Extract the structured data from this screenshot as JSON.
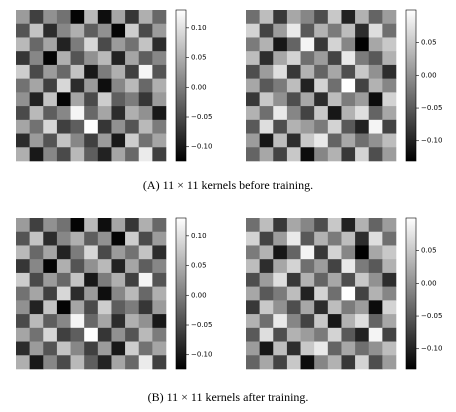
{
  "chart_data": [
    {
      "type": "heatmap",
      "colormap": "gray",
      "zlim": [
        -0.124,
        0.13
      ],
      "zticks": [
        {
          "value": 0.1,
          "label": "0.10"
        },
        0.05,
        {
          "value": 0,
          "label": "0.00"
        },
        {
          "value": -0.05,
          "label": "−0.05"
        },
        {
          "value": -0.1,
          "label": "−0.10"
        }
      ],
      "z": [
        [
          0.03,
          -0.06,
          0.02,
          -0.01,
          -0.12,
          0.06,
          -0.11,
          0.04,
          -0.07,
          0.05,
          -0.02
        ],
        [
          -0.04,
          0.07,
          -0.08,
          0.01,
          0.05,
          -0.03,
          0.02,
          -0.12,
          0.08,
          -0.05,
          0.03
        ],
        [
          0.06,
          -0.02,
          0.04,
          -0.09,
          0.0,
          0.09,
          -0.05,
          0.03,
          -0.01,
          0.07,
          -0.08
        ],
        [
          -0.07,
          0.01,
          -0.12,
          0.05,
          -0.04,
          0.02,
          0.06,
          -0.09,
          0.04,
          -0.03,
          0.01
        ],
        [
          0.08,
          -0.05,
          0.03,
          -0.02,
          0.07,
          -0.1,
          0.0,
          0.05,
          -0.06,
          0.12,
          -0.04
        ],
        [
          -0.01,
          0.04,
          -0.06,
          0.09,
          -0.08,
          0.03,
          -0.11,
          0.01,
          0.06,
          -0.02,
          0.05
        ],
        [
          0.02,
          -0.09,
          0.07,
          -0.12,
          0.04,
          -0.05,
          0.08,
          -0.03,
          0.0,
          -0.07,
          0.03
        ],
        [
          -0.05,
          0.06,
          -0.03,
          0.01,
          0.12,
          -0.02,
          0.04,
          -0.08,
          0.05,
          0.02,
          -0.1
        ],
        [
          0.04,
          -0.01,
          0.09,
          -0.06,
          -0.03,
          0.13,
          -0.07,
          0.02,
          -0.04,
          0.06,
          0.0
        ],
        [
          -0.08,
          0.03,
          -0.04,
          0.07,
          0.01,
          -0.06,
          0.03,
          -0.1,
          0.08,
          -0.01,
          0.04
        ],
        [
          0.05,
          -0.1,
          0.01,
          -0.05,
          0.06,
          -0.03,
          -0.09,
          0.04,
          -0.02,
          0.11,
          -0.06
        ]
      ]
    },
    {
      "type": "heatmap",
      "colormap": "gray",
      "zlim": [
        -0.131,
        0.1
      ],
      "zticks": [
        0.05,
        {
          "value": 0,
          "label": "0.00"
        },
        {
          "value": -0.05,
          "label": "−0.05"
        },
        {
          "value": -0.1,
          "label": "−0.10"
        }
      ],
      "z": [
        [
          -0.03,
          0.04,
          -0.08,
          0.02,
          -0.01,
          -0.06,
          0.05,
          -0.1,
          0.03,
          -0.04,
          0.01
        ],
        [
          0.06,
          -0.07,
          0.01,
          0.08,
          -0.05,
          0.03,
          -0.02,
          0.04,
          -0.09,
          0.07,
          -0.03
        ],
        [
          -0.02,
          0.03,
          -0.11,
          -0.04,
          0.09,
          -0.08,
          0.06,
          -0.01,
          -0.13,
          0.02,
          0.05
        ],
        [
          0.04,
          -0.09,
          0.02,
          0.06,
          -0.03,
          0.01,
          -0.07,
          0.08,
          -0.02,
          -0.05,
          0.03
        ],
        [
          -0.06,
          0.01,
          0.07,
          -0.08,
          0.03,
          -0.04,
          0.02,
          -0.06,
          0.05,
          0.0,
          -0.09
        ],
        [
          0.02,
          -0.05,
          -0.02,
          0.04,
          -0.1,
          0.06,
          -0.03,
          0.1,
          -0.07,
          0.03,
          -0.01
        ],
        [
          -0.08,
          0.05,
          0.0,
          -0.06,
          0.02,
          -0.09,
          0.04,
          -0.02,
          0.01,
          -0.12,
          0.06
        ],
        [
          0.03,
          -0.03,
          0.08,
          -0.01,
          -0.07,
          0.05,
          -0.11,
          0.03,
          0.07,
          -0.04,
          0.02
        ],
        [
          -0.05,
          0.07,
          -0.06,
          0.03,
          0.01,
          -0.02,
          0.06,
          -0.05,
          -0.1,
          0.09,
          -0.07
        ],
        [
          0.01,
          -0.11,
          0.04,
          -0.09,
          0.05,
          0.08,
          -0.04,
          0.02,
          -0.03,
          0.0,
          0.04
        ],
        [
          -0.04,
          0.02,
          -0.07,
          0.05,
          -0.12,
          -0.01,
          0.03,
          -0.08,
          0.06,
          -0.06,
          0.01
        ]
      ]
    },
    {
      "type": "heatmap",
      "colormap": "gray",
      "zlim": [
        -0.124,
        0.13
      ],
      "zticks": [
        {
          "value": 0.1,
          "label": "0.10"
        },
        0.05,
        {
          "value": 0,
          "label": "0.00"
        },
        {
          "value": -0.05,
          "label": "−0.05"
        },
        {
          "value": -0.1,
          "label": "−0.10"
        }
      ],
      "z": [
        [
          0.03,
          -0.06,
          0.02,
          -0.01,
          -0.12,
          0.06,
          -0.11,
          0.04,
          -0.07,
          0.05,
          -0.02
        ],
        [
          -0.04,
          0.07,
          -0.08,
          0.01,
          0.05,
          -0.03,
          0.02,
          -0.12,
          0.08,
          -0.05,
          0.03
        ],
        [
          0.06,
          -0.02,
          0.04,
          -0.09,
          0.0,
          0.09,
          -0.05,
          0.03,
          -0.01,
          0.07,
          -0.08
        ],
        [
          -0.07,
          0.01,
          -0.12,
          0.05,
          -0.04,
          0.02,
          0.06,
          -0.09,
          0.04,
          -0.03,
          0.01
        ],
        [
          0.08,
          -0.05,
          0.03,
          -0.02,
          0.07,
          -0.1,
          0.0,
          0.05,
          -0.06,
          0.12,
          -0.04
        ],
        [
          -0.01,
          0.04,
          -0.06,
          0.09,
          -0.08,
          0.03,
          -0.11,
          0.01,
          0.06,
          -0.02,
          0.05
        ],
        [
          0.02,
          -0.09,
          0.07,
          -0.12,
          0.04,
          -0.05,
          0.08,
          -0.03,
          0.0,
          -0.07,
          0.03
        ],
        [
          -0.05,
          0.06,
          -0.03,
          0.01,
          0.12,
          -0.02,
          0.04,
          -0.08,
          0.05,
          0.02,
          -0.1
        ],
        [
          0.04,
          -0.01,
          0.09,
          -0.06,
          -0.03,
          0.13,
          -0.07,
          0.02,
          -0.04,
          0.06,
          0.0
        ],
        [
          -0.08,
          0.03,
          -0.04,
          0.07,
          0.01,
          -0.06,
          0.03,
          -0.1,
          0.08,
          -0.01,
          0.04
        ],
        [
          0.05,
          -0.1,
          0.01,
          -0.05,
          0.06,
          -0.03,
          -0.09,
          0.04,
          -0.02,
          0.11,
          -0.06
        ]
      ]
    },
    {
      "type": "heatmap",
      "colormap": "gray",
      "zlim": [
        -0.131,
        0.1
      ],
      "zticks": [
        0.05,
        {
          "value": 0,
          "label": "0.00"
        },
        {
          "value": -0.05,
          "label": "−0.05"
        },
        {
          "value": -0.1,
          "label": "−0.10"
        }
      ],
      "z": [
        [
          -0.03,
          0.04,
          -0.08,
          0.02,
          -0.01,
          -0.06,
          0.05,
          -0.1,
          0.03,
          -0.04,
          0.01
        ],
        [
          0.06,
          -0.07,
          0.01,
          0.08,
          -0.05,
          0.03,
          -0.02,
          0.04,
          -0.09,
          0.07,
          -0.03
        ],
        [
          -0.02,
          0.03,
          -0.11,
          -0.04,
          0.09,
          -0.08,
          0.06,
          -0.01,
          -0.13,
          0.02,
          0.05
        ],
        [
          0.04,
          -0.09,
          0.02,
          0.06,
          -0.03,
          0.01,
          -0.07,
          0.08,
          -0.02,
          -0.05,
          0.03
        ],
        [
          -0.06,
          0.01,
          0.07,
          -0.08,
          0.03,
          -0.04,
          0.02,
          -0.06,
          0.05,
          0.0,
          -0.09
        ],
        [
          0.02,
          -0.05,
          -0.02,
          0.04,
          -0.1,
          0.06,
          -0.03,
          0.1,
          -0.07,
          0.03,
          -0.01
        ],
        [
          -0.08,
          0.05,
          0.0,
          -0.06,
          0.02,
          -0.09,
          0.04,
          -0.02,
          0.01,
          -0.12,
          0.06
        ],
        [
          0.03,
          -0.03,
          0.08,
          -0.01,
          -0.07,
          0.05,
          -0.11,
          0.03,
          0.07,
          -0.04,
          0.02
        ],
        [
          -0.05,
          0.07,
          -0.06,
          0.03,
          0.01,
          -0.02,
          0.06,
          -0.05,
          -0.1,
          0.09,
          -0.07
        ],
        [
          0.01,
          -0.11,
          0.04,
          -0.09,
          0.05,
          0.08,
          -0.04,
          0.02,
          -0.03,
          0.0,
          0.04
        ],
        [
          -0.04,
          0.02,
          -0.07,
          0.05,
          -0.12,
          -0.01,
          0.03,
          -0.08,
          0.06,
          -0.06,
          0.01
        ]
      ]
    }
  ],
  "captions": [
    "(A) 11 × 11 kernels before training.",
    "(B) 11 × 11 kernels after training."
  ]
}
